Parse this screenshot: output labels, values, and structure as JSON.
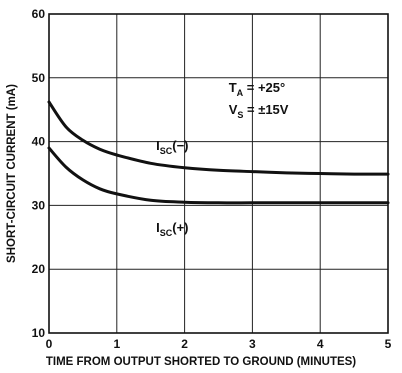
{
  "chart_data": {
    "type": "line",
    "xlabel": "TIME FROM OUTPUT SHORTED TO GROUND (MINUTES)",
    "ylabel": "SHORT-CIRCUIT CURRENT (mA)",
    "xlim": [
      0,
      5
    ],
    "ylim": [
      10,
      60
    ],
    "x_ticks": [
      "0",
      "1",
      "2",
      "3",
      "4",
      "5"
    ],
    "y_ticks": [
      "60",
      "50",
      "40",
      "30",
      "20",
      "10"
    ],
    "grid": true,
    "conditions": {
      "ta_main": "T",
      "ta_sub": "A",
      "ta_value": " = +25°",
      "vs_main": "V",
      "vs_sub": "S",
      "vs_value": " = ±15V"
    },
    "series": [
      {
        "name": "ISC(−)",
        "label_main": "I",
        "label_sub": "SC",
        "label_suffix": "(−)",
        "x": [
          0,
          0.25,
          0.5,
          0.75,
          1,
          1.5,
          2,
          2.5,
          3,
          3.5,
          4,
          4.5,
          5
        ],
        "values": [
          46.2,
          42.3,
          40.2,
          38.8,
          37.9,
          36.6,
          35.9,
          35.5,
          35.3,
          35.1,
          35.0,
          34.9,
          34.9
        ]
      },
      {
        "name": "ISC(+)",
        "label_main": "I",
        "label_sub": "SC",
        "label_suffix": "(+)",
        "x": [
          0,
          0.25,
          0.5,
          0.75,
          1,
          1.5,
          2,
          2.5,
          3,
          3.5,
          4,
          4.5,
          5
        ],
        "values": [
          39.0,
          36.0,
          34.0,
          32.6,
          31.8,
          30.8,
          30.5,
          30.4,
          30.4,
          30.4,
          30.4,
          30.4,
          30.4
        ]
      }
    ]
  }
}
